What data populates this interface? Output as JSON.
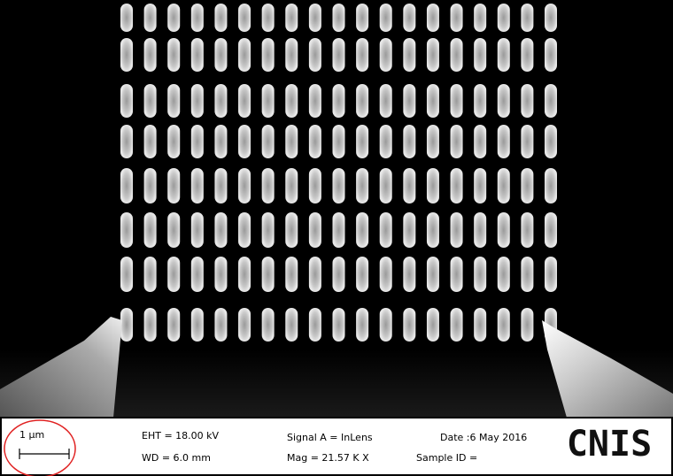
{
  "scale_bar": {
    "label": "1 µm"
  },
  "info": {
    "eht": "EHT = 18.00 kV",
    "wd": "WD = 6.0 mm",
    "signal": "Signal A = InLens",
    "mag": "Mag =  21.57 K X",
    "date": "Date :6 May 2016",
    "sample": "Sample ID ="
  },
  "logo": "CNIS"
}
